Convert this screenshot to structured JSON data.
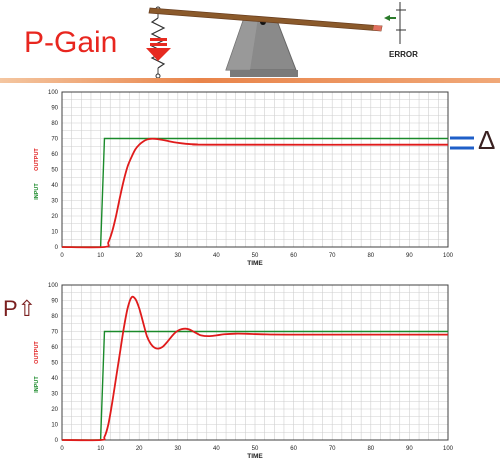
{
  "slide": {
    "title": "P-Gain",
    "error_label": "ERROR",
    "delta_symbol": "Δ",
    "p_increase_symbol": "P⇧",
    "colors": {
      "title": "#e8261f",
      "input": "#1a8a2a",
      "output": "#e01b1b",
      "delta_marks": "#1f5fc8",
      "grid": "#c8c8c8",
      "axis": "#404040"
    }
  },
  "chart_data": [
    {
      "type": "line",
      "title": "",
      "xlabel": "TIME",
      "ylabel_input": "INPUT",
      "ylabel_output": "OUTPUT",
      "xlim": [
        0,
        100
      ],
      "ylim": [
        0,
        100
      ],
      "xticks": [
        0,
        10,
        20,
        30,
        40,
        50,
        60,
        70,
        80,
        90,
        100
      ],
      "yticks": [
        0,
        10,
        20,
        30,
        40,
        50,
        60,
        70,
        80,
        90,
        100
      ],
      "series": [
        {
          "name": "INPUT",
          "color": "#1a8a2a",
          "points": [
            [
              0,
              0
            ],
            [
              10,
              0
            ],
            [
              11,
              70
            ],
            [
              100,
              70
            ]
          ]
        },
        {
          "name": "OUTPUT",
          "color": "#e01b1b",
          "points": [
            [
              0,
              0
            ],
            [
              11,
              0
            ],
            [
              12,
              3
            ],
            [
              13,
              10
            ],
            [
              14,
              20
            ],
            [
              15,
              32
            ],
            [
              16,
              43
            ],
            [
              17,
              52
            ],
            [
              18,
              58
            ],
            [
              19,
              63
            ],
            [
              20,
              66
            ],
            [
              21,
              68
            ],
            [
              22,
              69.3
            ],
            [
              23,
              69.8
            ],
            [
              24,
              69.8
            ],
            [
              25,
              69.5
            ],
            [
              27,
              68.6
            ],
            [
              29,
              67.6
            ],
            [
              31,
              66.9
            ],
            [
              33,
              66.4
            ],
            [
              35,
              66.2
            ],
            [
              40,
              66
            ],
            [
              100,
              66
            ]
          ]
        }
      ]
    },
    {
      "type": "line",
      "title": "",
      "xlabel": "TIME",
      "ylabel_input": "INPUT",
      "ylabel_output": "OUTPUT",
      "xlim": [
        0,
        100
      ],
      "ylim": [
        0,
        100
      ],
      "xticks": [
        0,
        10,
        20,
        30,
        40,
        50,
        60,
        70,
        80,
        90,
        100
      ],
      "yticks": [
        0,
        10,
        20,
        30,
        40,
        50,
        60,
        70,
        80,
        90,
        100
      ],
      "series": [
        {
          "name": "INPUT",
          "color": "#1a8a2a",
          "points": [
            [
              0,
              0
            ],
            [
              10,
              0
            ],
            [
              11,
              70
            ],
            [
              100,
              70
            ]
          ]
        },
        {
          "name": "OUTPUT",
          "color": "#e01b1b",
          "points": [
            [
              0,
              0
            ],
            [
              10,
              0
            ],
            [
              11,
              2
            ],
            [
              12,
              10
            ],
            [
              13,
              24
            ],
            [
              14,
              40
            ],
            [
              15,
              56
            ],
            [
              16,
              72
            ],
            [
              17,
              85
            ],
            [
              18,
              92
            ],
            [
              19,
              91
            ],
            [
              20,
              85
            ],
            [
              21,
              76
            ],
            [
              22,
              67
            ],
            [
              23,
              62
            ],
            [
              24,
              59.5
            ],
            [
              25,
              59
            ],
            [
              26,
              60
            ],
            [
              27,
              62.5
            ],
            [
              28,
              65.5
            ],
            [
              29,
              68.5
            ],
            [
              30,
              70.5
            ],
            [
              31,
              71.5
            ],
            [
              32,
              71.8
            ],
            [
              33,
              71.3
            ],
            [
              34,
              70
            ],
            [
              35,
              68.7
            ],
            [
              36,
              67.5
            ],
            [
              38,
              67
            ],
            [
              40,
              67.5
            ],
            [
              42,
              68.2
            ],
            [
              45,
              68.6
            ],
            [
              48,
              68.5
            ],
            [
              52,
              68.2
            ],
            [
              60,
              68
            ],
            [
              100,
              68
            ]
          ]
        }
      ]
    }
  ]
}
